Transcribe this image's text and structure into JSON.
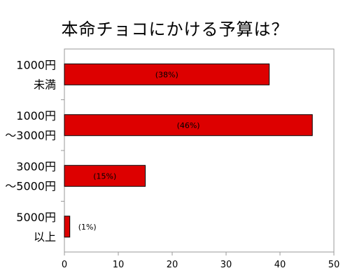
{
  "chart_data": {
    "type": "bar",
    "orientation": "horizontal",
    "title": "本命チョコにかける予算は？",
    "categories": [
      [
        "1000円",
        "未満"
      ],
      [
        "1000円",
        "～3000円"
      ],
      [
        "3000円",
        "～5000円"
      ],
      [
        "5000円",
        "以上"
      ]
    ],
    "values": [
      38,
      46,
      15,
      1
    ],
    "data_labels": [
      "(38%)",
      "(46%)",
      "(15%)",
      "(1%)"
    ],
    "xlim": [
      0,
      50
    ],
    "x_ticks": [
      0,
      10,
      20,
      30,
      40,
      50
    ],
    "xlabel": "",
    "ylabel": "",
    "grid": false,
    "legend": "none",
    "bar_color": "#dd0000",
    "bar_edge_color": "#000000",
    "axis_color": "#999999"
  }
}
